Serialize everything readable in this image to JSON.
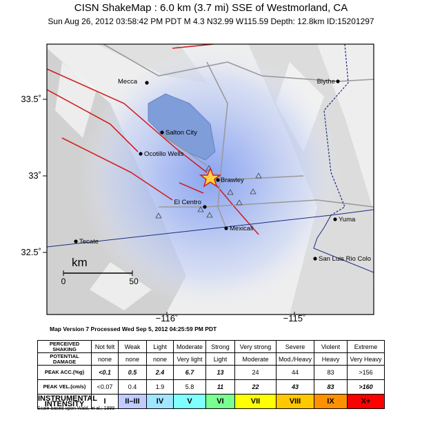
{
  "header": {
    "title": "CISN ShakeMap : 6.0 km (3.7 mi) SSE of Westmorland, CA",
    "subtitle": "Sun Aug 26, 2012 03:58:42 PM PDT   M 4.3   N32.99 W115.59   Depth: 12.8km   ID:15201297"
  },
  "map": {
    "places": [
      "Mecca",
      "Blythe",
      "Salton City",
      "Ocotillo Wells",
      "Brawley",
      "El Centro",
      "Mexicali",
      "Yuma",
      "Tecate",
      "San Luis Rio Colo"
    ],
    "lat_labels": [
      "33.5˚",
      "33˚",
      "32.5˚"
    ],
    "lon_labels": [
      "−116˚",
      "−115˚"
    ],
    "scale": {
      "unit": "km",
      "labels": [
        "0",
        "50"
      ]
    },
    "version": "Map Version 7 Processed Wed Sep  5, 2012 04:25:59 PM PDT"
  },
  "table": {
    "rows": [
      [
        "PERCEIVED SHAKING",
        "Not felt",
        "Weak",
        "Light",
        "Moderate",
        "Strong",
        "Very strong",
        "Severe",
        "Violent",
        "Extreme"
      ],
      [
        "POTENTIAL DAMAGE",
        "none",
        "none",
        "none",
        "Very light",
        "Light",
        "Moderate",
        "Mod./Heavy",
        "Heavy",
        "Very Heavy"
      ],
      [
        "PEAK ACC.(%g)",
        "<0.1",
        "0.5",
        "2.4",
        "6.7",
        "13",
        "24",
        "44",
        "83",
        ">156"
      ],
      [
        "PEAK VEL.(cm/s)",
        "<0.07",
        "0.4",
        "1.9",
        "5.8",
        "11",
        "22",
        "43",
        "83",
        ">160"
      ],
      [
        "INSTRUMENTAL INTENSITY",
        "I",
        "II–III",
        "IV",
        "V",
        "VI",
        "VII",
        "VIII",
        "IX",
        "X+"
      ]
    ]
  },
  "footnote": "Scale based upon Wald, et al.; 1999"
}
